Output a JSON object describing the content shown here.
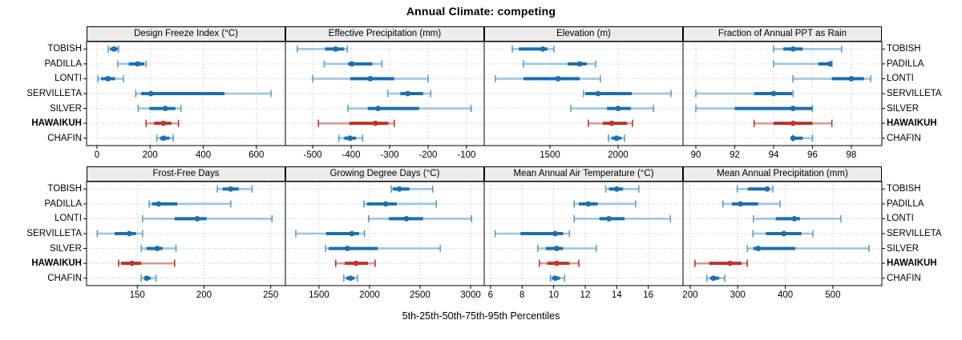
{
  "title": "Annual Climate: competing",
  "caption": "5th-25th-50th-75th-95th Percentiles",
  "sites": [
    "TOBISH",
    "PADILLA",
    "LONTI",
    "SERVILLETA",
    "SILVER",
    "HAWAIKUH",
    "CHAFIN"
  ],
  "highlight_site": "HAWAIKUH",
  "colors": {
    "blue_light": "#9dc5de",
    "blue_mid": "#5b9dc8",
    "blue_dark": "#1d6fad",
    "red_light": "#d69c96",
    "red_mid": "#b5352c",
    "red_dark": "#b5352c",
    "red_dot": "#c4372a",
    "grid": "#c9c9c9",
    "strip_bg": "#ececec",
    "border": "#000000"
  },
  "chart_data": {
    "type": "dot-whisker-trellis",
    "legend_note": "whisker: 5th-95th percentile (light), thick bar: 25th-75th percentile (dark), dot: median",
    "percentiles": [
      "5th",
      "25th",
      "50th",
      "75th",
      "95th"
    ],
    "panels": [
      {
        "title": "Design Freeze Index (°C)",
        "row": 0,
        "col": 0,
        "xlim": [
          -39,
          709
        ],
        "ticks": [
          0,
          200,
          400,
          600
        ],
        "values": {
          "TOBISH": [
            43,
            50,
            64,
            78,
            81
          ],
          "PADILLA": [
            78,
            120,
            153,
            178,
            185
          ],
          "LONTI": [
            4,
            16,
            41,
            68,
            100
          ],
          "SERVILLETA": [
            146,
            166,
            203,
            480,
            655
          ],
          "SILVER": [
            155,
            197,
            257,
            295,
            316
          ],
          "HAWAIKUH": [
            185,
            215,
            250,
            280,
            307
          ],
          "CHAFIN": [
            225,
            237,
            251,
            273,
            287
          ]
        }
      },
      {
        "title": "Effective Precipitation (mm)",
        "row": 0,
        "col": 1,
        "xlim": [
          -571,
          -54
        ],
        "ticks": [
          -500,
          -400,
          -300,
          -200,
          -100
        ],
        "values": {
          "TOBISH": [
            -540,
            -468,
            -440,
            -418,
            -410
          ],
          "PADILLA": [
            -470,
            -408,
            -398,
            -345,
            -320
          ],
          "LONTI": [
            -500,
            -402,
            -350,
            -288,
            -200
          ],
          "SERVILLETA": [
            -305,
            -272,
            -253,
            -213,
            -193
          ],
          "SILVER": [
            -408,
            -357,
            -330,
            -223,
            -88
          ],
          "HAWAIKUH": [
            -485,
            -405,
            -337,
            -303,
            -288
          ],
          "CHAFIN": [
            -432,
            -418,
            -403,
            -387,
            -370
          ]
        }
      },
      {
        "title": "Elevation (m)",
        "row": 0,
        "col": 2,
        "xlim": [
          1018,
          2476
        ],
        "ticks": [
          1500,
          2000
        ],
        "values": {
          "TOBISH": [
            1224,
            1271,
            1447,
            1482,
            1529
          ],
          "PADILLA": [
            1305,
            1630,
            1718,
            1770,
            1835
          ],
          "LONTI": [
            1100,
            1306,
            1559,
            1718,
            1870
          ],
          "SERVILLETA": [
            1747,
            1760,
            1853,
            2100,
            2388
          ],
          "SILVER": [
            1653,
            1918,
            2000,
            2094,
            2259
          ],
          "HAWAIKUH": [
            1782,
            1888,
            1953,
            2065,
            2106
          ],
          "CHAFIN": [
            1929,
            1953,
            1988,
            2024,
            2047
          ]
        }
      },
      {
        "title": "Fraction of Annual PPT as Rain",
        "row": 0,
        "col": 3,
        "xlim": [
          89.34,
          99.57
        ],
        "ticks": [
          90,
          92,
          94,
          96,
          98
        ],
        "values": {
          "TOBISH": [
            94,
            94.5,
            95,
            95.5,
            97.5
          ],
          "PADILLA": [
            94,
            96.3,
            96.9,
            97,
            97
          ],
          "LONTI": [
            95,
            97,
            98,
            98.65,
            99
          ],
          "SERVILLETA": [
            90,
            93,
            94,
            94.95,
            95
          ],
          "SILVER": [
            90,
            92,
            95,
            96,
            96
          ],
          "HAWAIKUH": [
            93,
            94,
            95,
            96,
            97
          ],
          "CHAFIN": [
            95,
            95,
            95,
            95.5,
            96
          ]
        }
      },
      {
        "title": "Frost-Free Days",
        "row": 1,
        "col": 0,
        "xlim": [
          112,
          261
        ],
        "ticks": [
          150,
          200,
          250
        ],
        "values": {
          "TOBISH": [
            210,
            214,
            220,
            226,
            236
          ],
          "PADILLA": [
            159,
            161,
            166,
            180,
            220
          ],
          "LONTI": [
            154,
            178,
            195,
            202,
            251
          ],
          "SERVILLETA": [
            120,
            133,
            144,
            149,
            154
          ],
          "SILVER": [
            153,
            157,
            165,
            169,
            179
          ],
          "HAWAIKUH": [
            136,
            138,
            146,
            153,
            178
          ],
          "CHAFIN": [
            153,
            155,
            157,
            160,
            164
          ]
        }
      },
      {
        "title": "Growing Degree Days (°C)",
        "row": 1,
        "col": 1,
        "xlim": [
          1167,
          3135
        ],
        "ticks": [
          1500,
          2000,
          2500,
          3000
        ],
        "values": {
          "TOBISH": [
            2215,
            2230,
            2295,
            2395,
            2625
          ],
          "PADILLA": [
            1945,
            1975,
            2160,
            2270,
            2660
          ],
          "LONTI": [
            1990,
            2190,
            2365,
            2530,
            3010
          ],
          "SERVILLETA": [
            1270,
            1570,
            1825,
            1895,
            1950
          ],
          "SILVER": [
            1565,
            1595,
            1780,
            2080,
            2700
          ],
          "HAWAIKUH": [
            1665,
            1755,
            1865,
            1985,
            2055
          ],
          "CHAFIN": [
            1745,
            1770,
            1810,
            1850,
            1880
          ]
        }
      },
      {
        "title": "Mean Annual Air Temperature (°C)",
        "row": 1,
        "col": 2,
        "xlim": [
          5.6,
          18.2
        ],
        "ticks": [
          6,
          8,
          10,
          12,
          14,
          16
        ],
        "values": {
          "TOBISH": [
            13.3,
            13.5,
            14,
            14.4,
            15.4
          ],
          "PADILLA": [
            11.3,
            11.6,
            12.2,
            12.8,
            15.2
          ],
          "LONTI": [
            11.3,
            12.9,
            13.5,
            14.5,
            17.4
          ],
          "SERVILLETA": [
            6.3,
            7.9,
            10.1,
            10.6,
            11
          ],
          "SILVER": [
            9,
            9.5,
            10.2,
            10.6,
            12.7
          ],
          "HAWAIKUH": [
            9.1,
            9.6,
            10.2,
            11,
            11.6
          ],
          "CHAFIN": [
            9.8,
            9.9,
            10.1,
            10.4,
            10.7
          ]
        }
      },
      {
        "title": "Mean Annual Precipitation (mm)",
        "row": 1,
        "col": 3,
        "xlim": [
          185,
          603
        ],
        "ticks": [
          200,
          300,
          400,
          500
        ],
        "values": {
          "TOBISH": [
            299,
            321,
            362,
            367,
            374
          ],
          "PADILLA": [
            269,
            288,
            306,
            343,
            389
          ],
          "LONTI": [
            333,
            380,
            419,
            431,
            517
          ],
          "SERVILLETA": [
            332,
            359,
            397,
            434,
            458
          ],
          "SILVER": [
            320,
            333,
            343,
            421,
            576
          ],
          "HAWAIKUH": [
            210,
            240,
            284,
            308,
            320
          ],
          "CHAFIN": [
            235,
            242,
            249,
            261,
            273
          ]
        }
      }
    ]
  }
}
